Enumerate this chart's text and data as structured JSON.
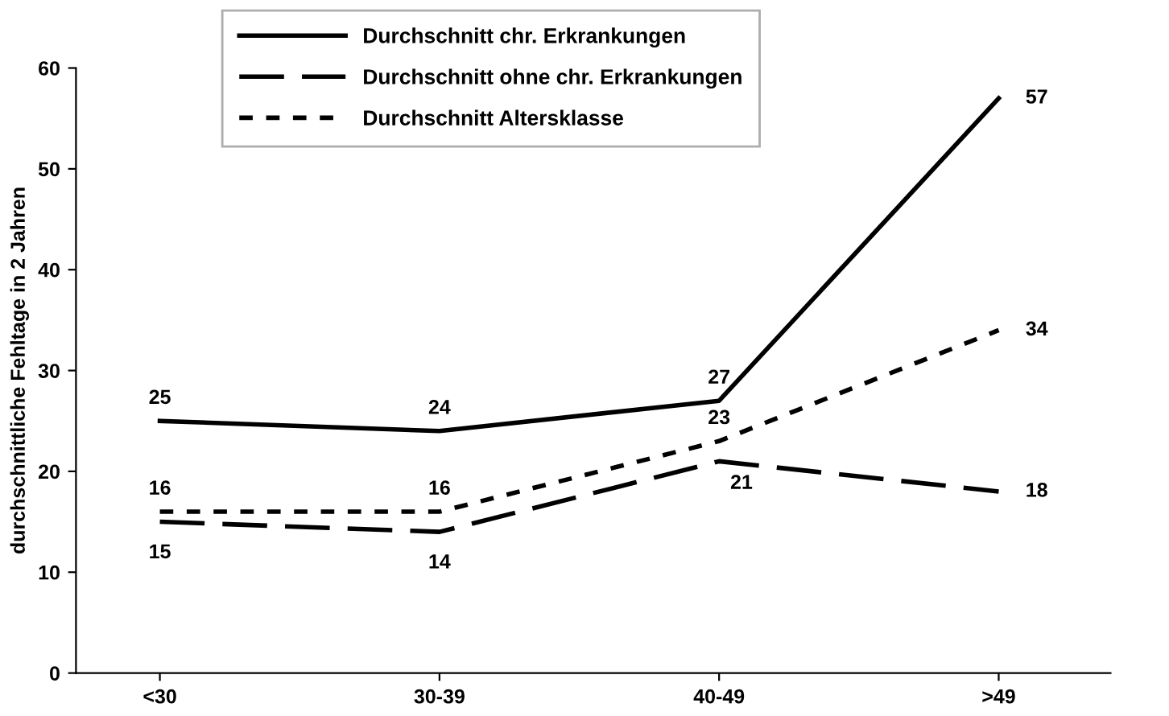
{
  "chart_data": {
    "type": "line",
    "ylabel": "durchschnittliche Fehltage in 2 Jahren",
    "categories": [
      "<30",
      "30-39",
      "40-49",
      ">49"
    ],
    "series": [
      {
        "name": "Durchschnitt chr. Erkrankungen",
        "color": "#000000",
        "line_style": "solid",
        "values": [
          25,
          24,
          27,
          57
        ]
      },
      {
        "name": "Durchschnitt ohne chr. Erkrankungen",
        "color": "#000000",
        "line_style": "dashed",
        "values": [
          15,
          14,
          21,
          18
        ]
      },
      {
        "name": "Durchschnitt Altersklasse",
        "color": "#000000",
        "line_style": "dotted",
        "values": [
          16,
          16,
          23,
          34
        ]
      }
    ],
    "ylim": [
      0,
      60
    ],
    "yticks": [
      0,
      10,
      20,
      30,
      40,
      50,
      60
    ],
    "grid": false,
    "legend": "top",
    "data_labels": true,
    "marker": "none"
  }
}
